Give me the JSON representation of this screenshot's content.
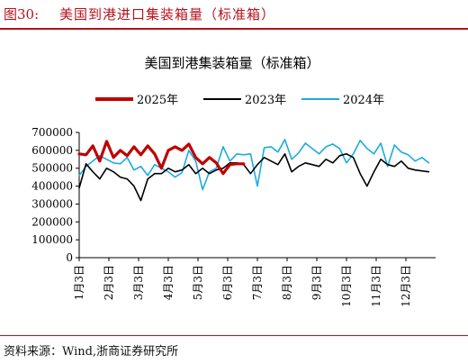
{
  "header": {
    "figure_number": "图30:",
    "figure_title": "美国到港进口集装箱量（标准箱）"
  },
  "footer": {
    "source": "资料来源：Wind,浙商证券研究所"
  },
  "colors": {
    "accent": "#b5121b",
    "series_2025": "#c00000",
    "series_2023": "#000000",
    "series_2024": "#1aace0"
  },
  "chart_data": {
    "type": "line",
    "title": "美国到港集装箱量（标准箱）",
    "xlabel": "",
    "ylabel": "",
    "ylim": [
      0,
      700000
    ],
    "yticks": [
      "700000",
      "600000",
      "500000",
      "400000",
      "300000",
      "200000",
      "100000",
      "0"
    ],
    "x_tick_labels": [
      "1月3日",
      "2月3日",
      "3月3日",
      "4月3日",
      "5月3日",
      "6月3日",
      "7月3日",
      "8月3日",
      "9月3日",
      "10月3日",
      "11月3日",
      "12月3日"
    ],
    "x_unit": "week",
    "x_range": [
      1,
      53
    ],
    "legend_position": "top",
    "series": [
      {
        "name": "2025年",
        "x": [
          1,
          2,
          3,
          4,
          5,
          6,
          7,
          8,
          9,
          10,
          11,
          12,
          13,
          14,
          15,
          16,
          17,
          18,
          19,
          20,
          21,
          22,
          23,
          24,
          25
        ],
        "values": [
          580000,
          575000,
          625000,
          540000,
          650000,
          560000,
          600000,
          570000,
          620000,
          575000,
          625000,
          580000,
          500000,
          600000,
          620000,
          600000,
          635000,
          560000,
          525000,
          560000,
          530000,
          470000,
          520000,
          525000,
          525000
        ]
      },
      {
        "name": "2023年",
        "x": [
          1,
          2,
          3,
          4,
          5,
          6,
          7,
          8,
          9,
          10,
          11,
          12,
          13,
          14,
          15,
          16,
          17,
          18,
          19,
          20,
          21,
          22,
          23,
          24,
          25,
          26,
          27,
          28,
          29,
          30,
          31,
          32,
          33,
          34,
          35,
          36,
          37,
          38,
          39,
          40,
          41,
          42,
          43,
          44,
          45,
          46,
          47,
          48,
          49,
          50,
          51,
          52
        ],
        "values": [
          390000,
          525000,
          480000,
          440000,
          500000,
          480000,
          450000,
          440000,
          400000,
          320000,
          440000,
          470000,
          470000,
          500000,
          480000,
          490000,
          520000,
          470000,
          500000,
          470000,
          490000,
          500000,
          530000,
          530000,
          520000,
          470000,
          520000,
          560000,
          540000,
          520000,
          580000,
          480000,
          510000,
          530000,
          520000,
          510000,
          550000,
          530000,
          570000,
          580000,
          560000,
          470000,
          400000,
          480000,
          550000,
          520000,
          510000,
          540000,
          500000,
          490000,
          485000,
          480000
        ]
      },
      {
        "name": "2024年",
        "x": [
          1,
          2,
          3,
          4,
          5,
          6,
          7,
          8,
          9,
          10,
          11,
          12,
          13,
          14,
          15,
          16,
          17,
          18,
          19,
          20,
          21,
          22,
          23,
          24,
          25,
          26,
          27,
          28,
          29,
          30,
          31,
          32,
          33,
          34,
          35,
          36,
          37,
          38,
          39,
          40,
          41,
          42,
          43,
          44,
          45,
          46,
          47,
          48,
          49,
          50,
          51,
          52
        ],
        "values": [
          460000,
          510000,
          540000,
          570000,
          550000,
          530000,
          525000,
          560000,
          490000,
          510000,
          460000,
          520000,
          500000,
          480000,
          450000,
          475000,
          600000,
          540000,
          380000,
          480000,
          500000,
          620000,
          540000,
          580000,
          575000,
          580000,
          400000,
          615000,
          620000,
          590000,
          660000,
          550000,
          585000,
          640000,
          610000,
          580000,
          620000,
          635000,
          610000,
          530000,
          580000,
          655000,
          610000,
          580000,
          640000,
          510000,
          630000,
          590000,
          575000,
          540000,
          560000,
          530000
        ]
      }
    ]
  }
}
